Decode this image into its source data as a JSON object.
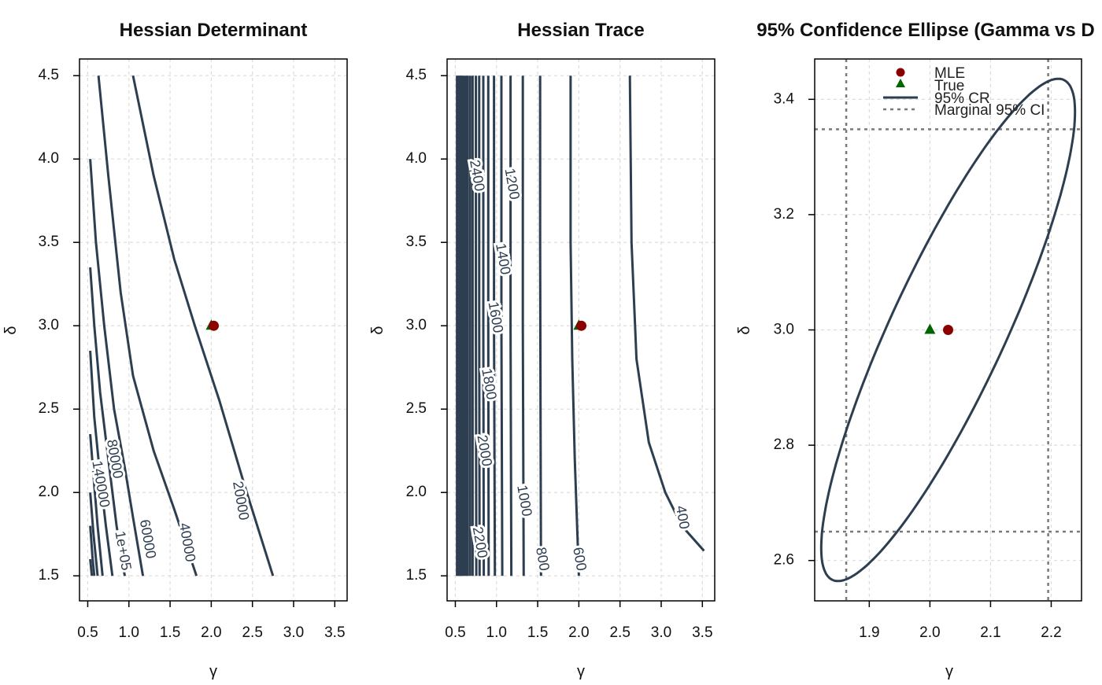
{
  "colors": {
    "contour": "#2d3e50",
    "mle": "#8b0000",
    "truth": "#006400",
    "grid": "#dcdcdc",
    "ci_line": "#7a7a7a"
  },
  "chart_data": [
    {
      "type": "contour",
      "title": "Hessian Determinant",
      "xlabel": "γ",
      "ylabel": "δ",
      "xlim": [
        0.4,
        3.65
      ],
      "ylim": [
        1.35,
        4.6
      ],
      "x_ticks": [
        "0.5",
        "1.0",
        "1.5",
        "2.0",
        "2.5",
        "3.0",
        "3.5"
      ],
      "y_ticks": [
        "1.5",
        "2.0",
        "2.5",
        "3.0",
        "3.5",
        "4.0",
        "4.5"
      ],
      "grid": true,
      "levels": [
        {
          "label": "20000",
          "points": [
            [
              1.05,
              4.5
            ],
            [
              1.3,
              3.9
            ],
            [
              1.55,
              3.4
            ],
            [
              1.8,
              3.0
            ],
            [
              2.1,
              2.55
            ],
            [
              2.4,
              2.05
            ],
            [
              2.75,
              1.5
            ]
          ]
        },
        {
          "label": "40000",
          "points": [
            [
              0.63,
              4.5
            ],
            [
              0.75,
              3.9
            ],
            [
              0.9,
              3.2
            ],
            [
              1.05,
              2.7
            ],
            [
              1.3,
              2.25
            ],
            [
              1.55,
              1.9
            ],
            [
              1.82,
              1.5
            ]
          ]
        },
        {
          "label": "60000",
          "points": [
            [
              0.53,
              4.0
            ],
            [
              0.6,
              3.5
            ],
            [
              0.7,
              3.0
            ],
            [
              0.82,
              2.5
            ],
            [
              0.95,
              2.15
            ],
            [
              1.05,
              1.85
            ],
            [
              1.17,
              1.5
            ]
          ]
        },
        {
          "label": "80000",
          "points": [
            [
              0.53,
              3.35
            ],
            [
              0.58,
              3.0
            ],
            [
              0.65,
              2.6
            ],
            [
              0.75,
              2.2
            ],
            [
              0.85,
              1.8
            ],
            [
              0.95,
              1.5
            ]
          ]
        },
        {
          "label": "1e+05",
          "points": [
            [
              0.53,
              2.85
            ],
            [
              0.58,
              2.45
            ],
            [
              0.65,
              2.1
            ],
            [
              0.72,
              1.8
            ],
            [
              0.8,
              1.5
            ]
          ]
        },
        {
          "label": "140000",
          "points": [
            [
              0.53,
              2.35
            ],
            [
              0.57,
              2.1
            ],
            [
              0.62,
              1.8
            ],
            [
              0.68,
              1.5
            ]
          ]
        },
        {
          "label": "",
          "points": [
            [
              0.53,
              2.0
            ],
            [
              0.57,
              1.75
            ],
            [
              0.62,
              1.5
            ]
          ]
        },
        {
          "label": "",
          "points": [
            [
              0.53,
              1.8
            ],
            [
              0.56,
              1.6
            ],
            [
              0.58,
              1.5
            ]
          ]
        },
        {
          "label": "",
          "points": [
            [
              0.53,
              1.6
            ],
            [
              0.55,
              1.5
            ]
          ]
        }
      ],
      "contour_labels": [
        {
          "text": "20000",
          "x": 2.35,
          "y": 1.95
        },
        {
          "text": "40000",
          "x": 1.7,
          "y": 1.7
        },
        {
          "text": "60000",
          "x": 1.22,
          "y": 1.72
        },
        {
          "text": "80000",
          "x": 0.82,
          "y": 2.2
        },
        {
          "text": "1e+05",
          "x": 0.92,
          "y": 1.65
        },
        {
          "text": "140000",
          "x": 0.65,
          "y": 2.05
        }
      ],
      "points": [
        {
          "name": "MLE",
          "x": 2.03,
          "y": 3.0
        },
        {
          "name": "True",
          "x": 2.0,
          "y": 3.0
        }
      ]
    },
    {
      "type": "contour",
      "title": "Hessian Trace",
      "xlabel": "γ",
      "ylabel": "δ",
      "xlim": [
        0.4,
        3.65
      ],
      "ylim": [
        1.35,
        4.6
      ],
      "x_ticks": [
        "0.5",
        "1.0",
        "1.5",
        "2.0",
        "2.5",
        "3.0",
        "3.5"
      ],
      "y_ticks": [
        "1.5",
        "2.0",
        "2.5",
        "3.0",
        "3.5",
        "4.0",
        "4.5"
      ],
      "grid": true,
      "levels": [
        {
          "label": "400",
          "points": [
            [
              2.62,
              4.5
            ],
            [
              2.64,
              3.5
            ],
            [
              2.7,
              2.8
            ],
            [
              2.85,
              2.3
            ],
            [
              3.05,
              2.0
            ],
            [
              3.25,
              1.8
            ],
            [
              3.52,
              1.65
            ]
          ]
        },
        {
          "label": "600",
          "points": [
            [
              1.9,
              4.5
            ],
            [
              1.9,
              3.5
            ],
            [
              1.92,
              2.8
            ],
            [
              1.95,
              2.2
            ],
            [
              2.0,
              1.5
            ]
          ]
        },
        {
          "label": "800",
          "points": [
            [
              1.53,
              4.5
            ],
            [
              1.53,
              3.5
            ],
            [
              1.535,
              2.5
            ],
            [
              1.54,
              1.5
            ]
          ]
        },
        {
          "label": "1000",
          "points": [
            [
              1.32,
              4.5
            ],
            [
              1.32,
              3.0
            ],
            [
              1.33,
              1.5
            ]
          ]
        },
        {
          "label": "1200",
          "points": [
            [
              1.17,
              4.5
            ],
            [
              1.17,
              3.0
            ],
            [
              1.18,
              1.5
            ]
          ]
        },
        {
          "label": "1400",
          "points": [
            [
              1.06,
              4.5
            ],
            [
              1.06,
              3.0
            ],
            [
              1.07,
              1.5
            ]
          ]
        },
        {
          "label": "1600",
          "points": [
            [
              0.97,
              4.5
            ],
            [
              0.97,
              3.0
            ],
            [
              0.98,
              1.5
            ]
          ]
        },
        {
          "label": "1800",
          "points": [
            [
              0.9,
              4.5
            ],
            [
              0.9,
              3.0
            ],
            [
              0.905,
              1.5
            ]
          ]
        },
        {
          "label": "2000",
          "points": [
            [
              0.84,
              4.5
            ],
            [
              0.84,
              3.0
            ],
            [
              0.845,
              1.5
            ]
          ]
        },
        {
          "label": "2200",
          "points": [
            [
              0.79,
              4.5
            ],
            [
              0.79,
              3.0
            ],
            [
              0.795,
              1.5
            ]
          ]
        },
        {
          "label": "2400",
          "points": [
            [
              0.75,
              4.5
            ],
            [
              0.75,
              3.0
            ],
            [
              0.755,
              1.5
            ]
          ]
        },
        {
          "label": "",
          "points": [
            [
              0.71,
              4.5
            ],
            [
              0.71,
              1.5
            ]
          ]
        },
        {
          "label": "",
          "points": [
            [
              0.68,
              4.5
            ],
            [
              0.68,
              1.5
            ]
          ]
        },
        {
          "label": "",
          "points": [
            [
              0.65,
              4.5
            ],
            [
              0.65,
              1.5
            ]
          ]
        },
        {
          "label": "",
          "points": [
            [
              0.625,
              4.5
            ],
            [
              0.625,
              1.5
            ]
          ]
        },
        {
          "label": "",
          "points": [
            [
              0.605,
              4.5
            ],
            [
              0.605,
              1.5
            ]
          ]
        },
        {
          "label": "",
          "points": [
            [
              0.585,
              4.5
            ],
            [
              0.585,
              1.5
            ]
          ]
        },
        {
          "label": "",
          "points": [
            [
              0.57,
              4.5
            ],
            [
              0.57,
              1.5
            ]
          ]
        },
        {
          "label": "",
          "points": [
            [
              0.555,
              4.5
            ],
            [
              0.555,
              1.5
            ]
          ]
        },
        {
          "label": "",
          "points": [
            [
              0.54,
              4.5
            ],
            [
              0.54,
              1.5
            ]
          ]
        },
        {
          "label": "",
          "points": [
            [
              0.53,
              4.5
            ],
            [
              0.53,
              1.5
            ]
          ]
        },
        {
          "label": "",
          "points": [
            [
              0.52,
              4.5
            ],
            [
              0.52,
              1.5
            ]
          ]
        }
      ],
      "contour_labels": [
        {
          "text": "400",
          "x": 3.25,
          "y": 1.85
        },
        {
          "text": "600",
          "x": 2.0,
          "y": 1.6
        },
        {
          "text": "800",
          "x": 1.55,
          "y": 1.6
        },
        {
          "text": "1000",
          "x": 1.33,
          "y": 1.95
        },
        {
          "text": "1200",
          "x": 1.18,
          "y": 3.85
        },
        {
          "text": "1400",
          "x": 1.07,
          "y": 3.4
        },
        {
          "text": "1600",
          "x": 0.98,
          "y": 3.05
        },
        {
          "text": "1800",
          "x": 0.9,
          "y": 2.65
        },
        {
          "text": "2000",
          "x": 0.845,
          "y": 2.25
        },
        {
          "text": "2200",
          "x": 0.79,
          "y": 1.7
        },
        {
          "text": "2400",
          "x": 0.755,
          "y": 3.9
        }
      ],
      "points": [
        {
          "name": "MLE",
          "x": 2.03,
          "y": 3.0
        },
        {
          "name": "True",
          "x": 2.0,
          "y": 3.0
        }
      ]
    },
    {
      "type": "scatter",
      "title": "95% Confidence Ellipse (Gamma vs D",
      "xlabel": "γ",
      "ylabel": "δ",
      "xlim": [
        1.81,
        2.25
      ],
      "ylim": [
        2.53,
        3.47
      ],
      "x_ticks": [
        "1.9",
        "2.0",
        "2.1",
        "2.2"
      ],
      "y_ticks": [
        "2.6",
        "2.8",
        "3.0",
        "3.2",
        "3.4"
      ],
      "grid": true,
      "ellipse": {
        "center": [
          2.03,
          3.0
        ],
        "sd_x": 0.0855,
        "sd_y": 0.178,
        "corr": 0.868,
        "chi2": 5.991
      },
      "marginal_ci_x": [
        1.862,
        2.195
      ],
      "marginal_ci_y": [
        2.65,
        3.348
      ],
      "points": [
        {
          "name": "MLE",
          "x": 2.03,
          "y": 3.0
        },
        {
          "name": "True",
          "x": 2.0,
          "y": 3.0
        }
      ],
      "legend": {
        "position": "top",
        "entries": [
          "MLE",
          "True",
          "95% CR",
          "Marginal 95% CI"
        ]
      }
    }
  ]
}
